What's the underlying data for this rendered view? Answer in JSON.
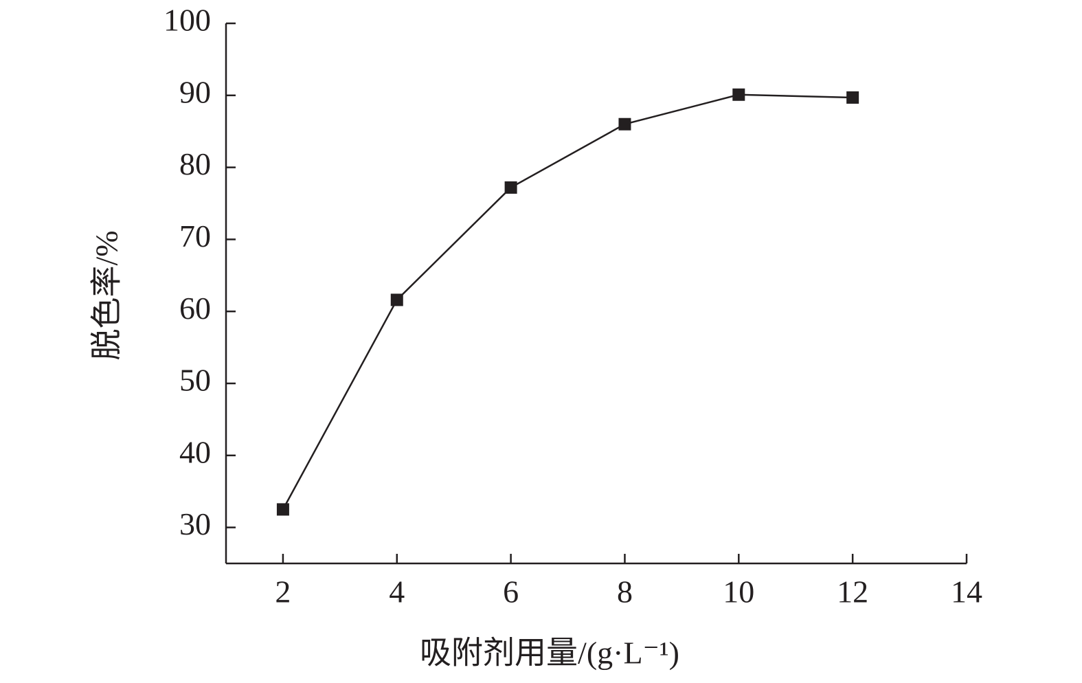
{
  "chart_data": {
    "type": "line",
    "x_label": "吸附剂用量/(g·L⁻¹)",
    "y_label": "脱色率/%",
    "x": [
      2,
      4,
      6,
      8,
      10,
      12
    ],
    "values": [
      32.5,
      61.6,
      77.2,
      86.0,
      90.1,
      89.7
    ],
    "color": "#231f20",
    "xlim": [
      1,
      14
    ],
    "xticks": [
      2,
      4,
      6,
      8,
      10,
      12,
      14
    ],
    "ylim": [
      25,
      100
    ],
    "yticks": [
      30,
      40,
      50,
      60,
      70,
      80,
      90,
      100
    ]
  }
}
